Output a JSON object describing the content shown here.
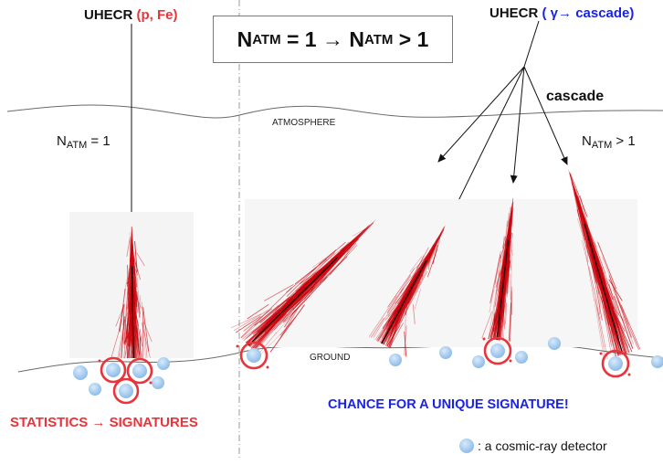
{
  "left": {
    "source_label": "UHECR",
    "source_particles": "(p, Fe)",
    "natm_prefix": "N",
    "natm_sub": "ATM",
    "natm_value": " = 1",
    "caption": "STATISTICS → SIGNATURES"
  },
  "right": {
    "source_label": "UHECR",
    "source_particles": "( γ→ cascade)",
    "cascade_label": "cascade",
    "natm_prefix": "N",
    "natm_sub": "ATM",
    "natm_value": " > 1",
    "caption": "CHANCE FOR A UNIQUE SIGNATURE!"
  },
  "title": {
    "n1": "N",
    "sub1": "ATM",
    "mid": " = 1 → ",
    "n2": "N",
    "sub2": "ATM",
    "end": " > 1"
  },
  "labels": {
    "atmosphere": "ATMOSPHERE",
    "ground": "GROUND"
  },
  "legend": {
    "detector_text": ": a cosmic-ray detector"
  },
  "colors": {
    "shower": "#c8000a",
    "detector": "#a8cdf0",
    "ring": "#e8343a",
    "red_text": "#e8343a",
    "blue_text": "#1a22e8"
  }
}
